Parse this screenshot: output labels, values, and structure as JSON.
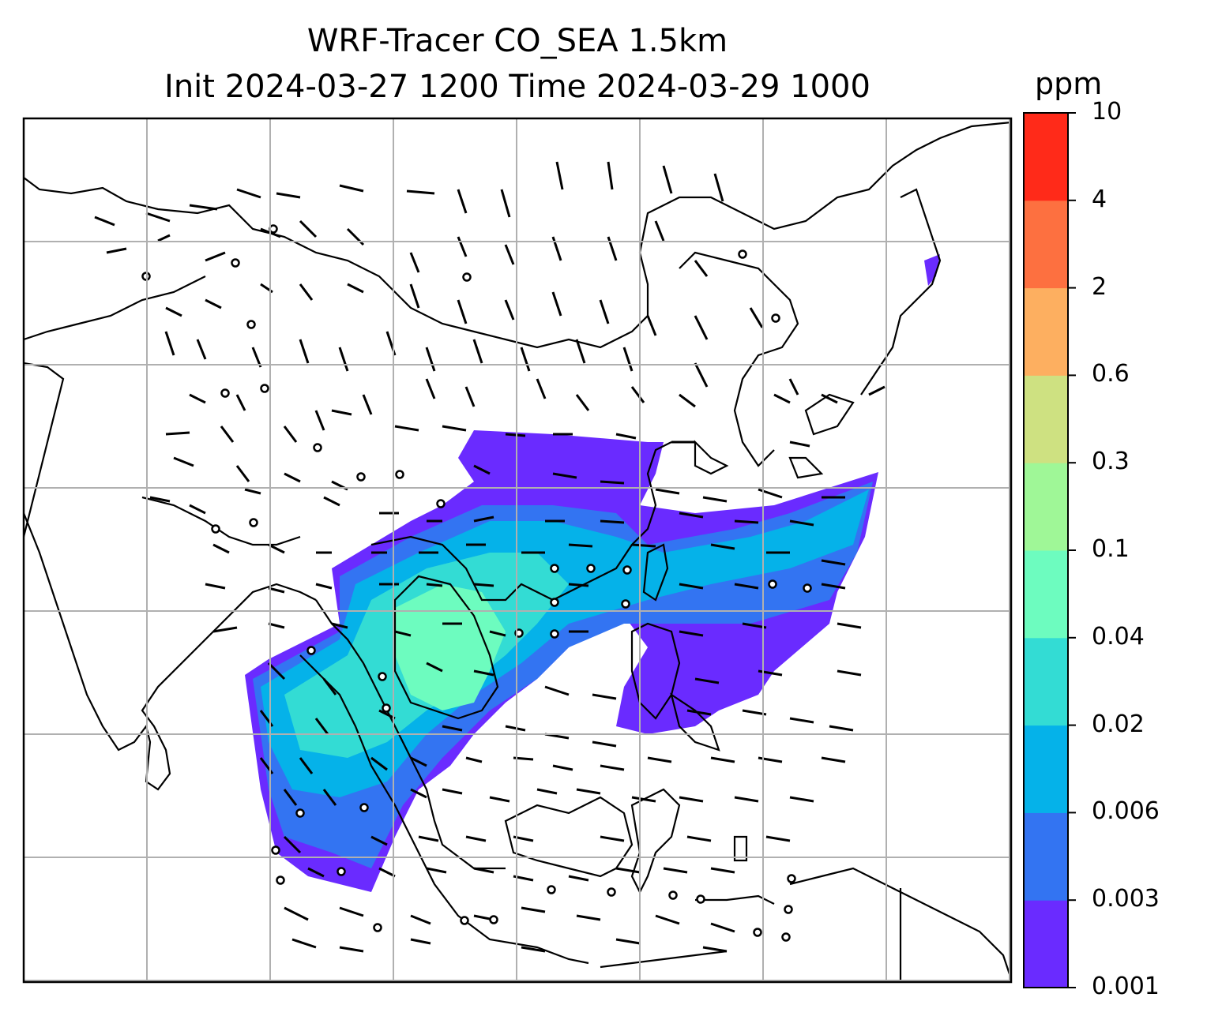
{
  "title_line1": "WRF-Tracer CO_SEA 1.5km",
  "title_line2": "Init 2024-03-27 1200 Time 2024-03-29 1000",
  "colorbar": {
    "unit": "ppm",
    "ticks": [
      "0.001",
      "0.003",
      "0.006",
      "0.02",
      "0.04",
      "0.1",
      "0.3",
      "0.6",
      "2",
      "4",
      "10"
    ],
    "colors": [
      "#6a2bff",
      "#3374f2",
      "#05b2e9",
      "#33dcd4",
      "#6dfcbf",
      "#9ff797",
      "#cee181",
      "#fdaf60",
      "#fd7040",
      "#ff2a19"
    ]
  },
  "map": {
    "grid_columns": 8,
    "grid_rows": 7,
    "land_outline_color": "#000000",
    "grid_color": "#b0b0b0"
  }
}
